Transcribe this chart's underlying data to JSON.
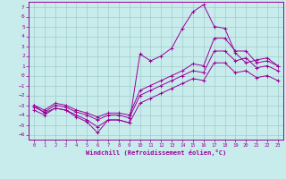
{
  "xlabel": "Windchill (Refroidissement éolien,°C)",
  "xlim": [
    -0.5,
    23.5
  ],
  "ylim": [
    -6.5,
    7.5
  ],
  "xticks": [
    0,
    1,
    2,
    3,
    4,
    5,
    6,
    7,
    8,
    9,
    10,
    11,
    12,
    13,
    14,
    15,
    16,
    17,
    18,
    19,
    20,
    21,
    22,
    23
  ],
  "yticks": [
    7,
    6,
    5,
    4,
    3,
    2,
    1,
    0,
    -1,
    -2,
    -3,
    -4,
    -5,
    -6
  ],
  "background_color": "#c8ecec",
  "grid_color": "#a0cccc",
  "line_color": "#990099",
  "line1_y": [
    -3.0,
    -3.8,
    -3.3,
    -3.5,
    -4.2,
    -4.7,
    -5.8,
    -4.5,
    -4.5,
    -4.8,
    2.2,
    1.5,
    2.0,
    2.8,
    4.8,
    6.5,
    7.2,
    5.0,
    4.8,
    2.3,
    1.3,
    1.6,
    1.8,
    1.0
  ],
  "line2_y": [
    -3.0,
    -3.5,
    -2.8,
    -3.0,
    -3.5,
    -3.8,
    -4.2,
    -3.8,
    -3.8,
    -4.0,
    -1.5,
    -1.0,
    -0.5,
    0.0,
    0.5,
    1.2,
    1.0,
    3.8,
    3.8,
    2.5,
    2.5,
    1.3,
    1.5,
    1.0
  ],
  "line3_y": [
    -3.2,
    -3.7,
    -3.0,
    -3.2,
    -3.7,
    -4.0,
    -4.5,
    -4.0,
    -4.0,
    -4.3,
    -2.0,
    -1.5,
    -1.0,
    -0.5,
    0.0,
    0.5,
    0.3,
    2.5,
    2.5,
    1.5,
    1.8,
    0.8,
    1.0,
    0.5
  ],
  "line4_y": [
    -3.5,
    -4.0,
    -3.3,
    -3.5,
    -4.0,
    -4.5,
    -5.2,
    -4.5,
    -4.5,
    -4.8,
    -2.8,
    -2.3,
    -1.8,
    -1.3,
    -0.8,
    -0.3,
    -0.5,
    1.3,
    1.3,
    0.3,
    0.5,
    -0.2,
    0.0,
    -0.5
  ]
}
